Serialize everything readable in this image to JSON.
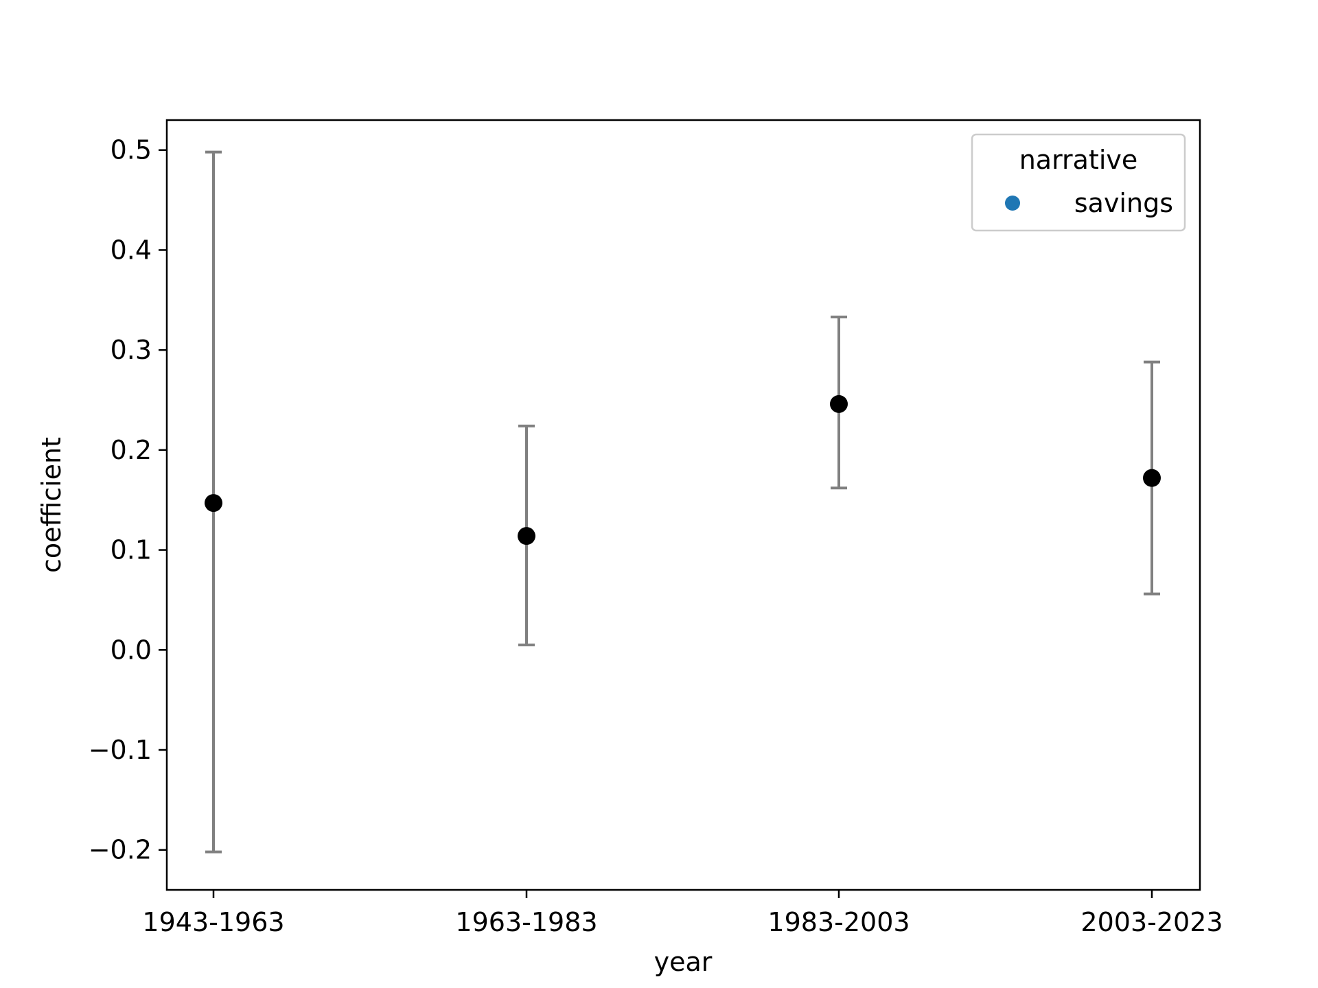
{
  "chart_data": {
    "type": "scatter",
    "title": "",
    "xlabel": "year",
    "ylabel": "coefficient",
    "categories": [
      "1943-1963",
      "1963-1983",
      "1983-2003",
      "2003-2023"
    ],
    "ylim": [
      -0.24,
      0.53
    ],
    "yticks": [
      -0.2,
      -0.1,
      0.0,
      0.1,
      0.2,
      0.3,
      0.4,
      0.5
    ],
    "ytick_labels": [
      "−0.2",
      "−0.1",
      "0.0",
      "0.1",
      "0.2",
      "0.3",
      "0.4",
      "0.5"
    ],
    "grid": false,
    "series": [
      {
        "name": "savings",
        "values": [
          0.147,
          0.114,
          0.246,
          0.172
        ],
        "lower": [
          -0.202,
          0.005,
          0.162,
          0.056
        ],
        "upper": [
          0.498,
          0.224,
          0.333,
          0.288
        ]
      }
    ],
    "legend": {
      "title": "narrative",
      "placement": "top-right",
      "entries": [
        "savings"
      ]
    },
    "colors": {
      "point": "#000000",
      "errorbar": "#808080",
      "legend_marker": "#1f77b4"
    }
  }
}
